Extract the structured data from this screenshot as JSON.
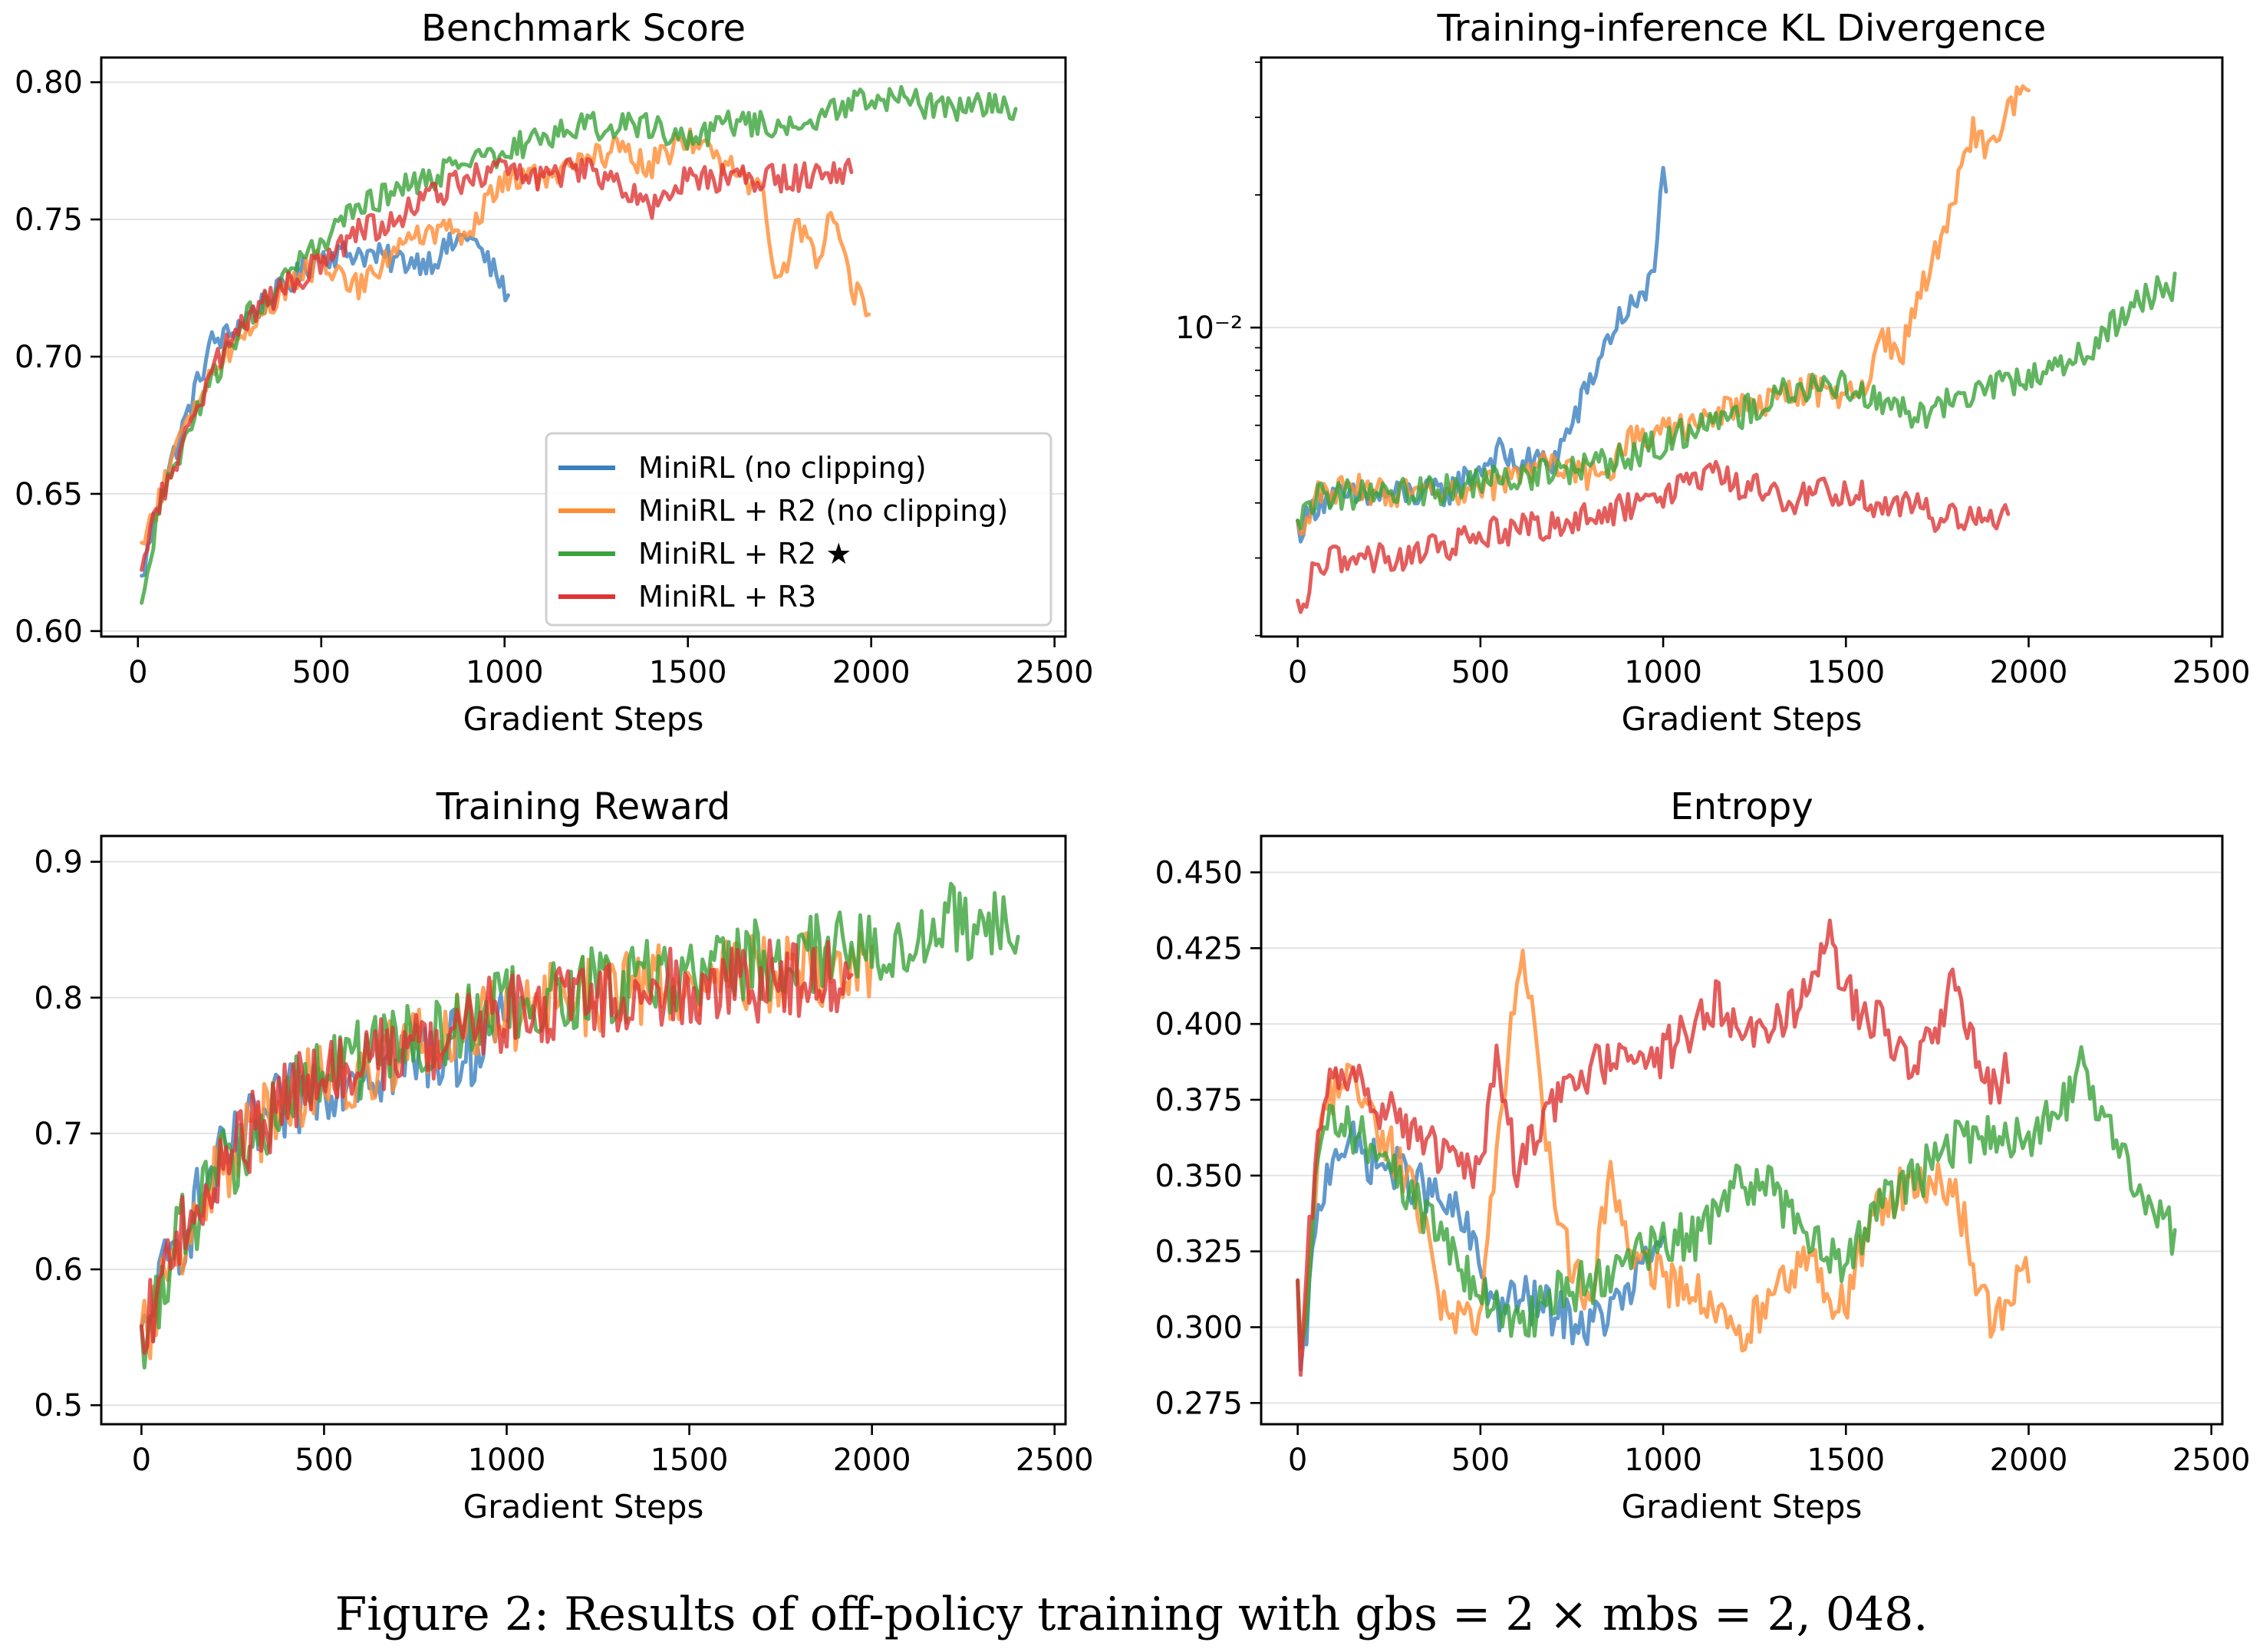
{
  "caption": "Figure 2: Results of off-policy training with gbs = 2 × mbs = 2, 048.",
  "legend": [
    {
      "label": "MiniRL (no clipping)",
      "color": "#3a7fbf"
    },
    {
      "label": "MiniRL + R2 (no clipping)",
      "color": "#ff8c33"
    },
    {
      "label": "MiniRL + R2 ★",
      "color": "#3aa33a"
    },
    {
      "label": "MiniRL + R3",
      "color": "#dd3535"
    }
  ],
  "chart_data": [
    {
      "id": "benchmark",
      "type": "line",
      "title": "Benchmark Score",
      "xlabel": "Gradient Steps",
      "ylabel": "",
      "xlim": [
        -100,
        2530
      ],
      "ylim": [
        0.598,
        0.809
      ],
      "xticks": [
        0,
        500,
        1000,
        1500,
        2000,
        2500
      ],
      "xtick_labels": [
        "0",
        "500",
        "1000",
        "1500",
        "2000",
        "2500"
      ],
      "yticks": [
        0.6,
        0.65,
        0.7,
        0.75,
        0.8
      ],
      "ytick_labels": [
        "0.60",
        "0.65",
        "0.70",
        "0.75",
        "0.80"
      ],
      "yscale": "linear",
      "grid": "y",
      "legend_position": "lower-right",
      "noise": 0.005,
      "series": [
        {
          "name": "MiniRL (no clipping)",
          "x": [
            10,
            50,
            100,
            150,
            200,
            250,
            300,
            400,
            500,
            600,
            700,
            800,
            900,
            950,
            1000,
            1010
          ],
          "y": [
            0.618,
            0.645,
            0.665,
            0.685,
            0.705,
            0.708,
            0.715,
            0.725,
            0.737,
            0.738,
            0.735,
            0.735,
            0.745,
            0.735,
            0.725,
            0.718
          ]
        },
        {
          "name": "MiniRL + R2 (no clipping)",
          "x": [
            10,
            50,
            100,
            200,
            300,
            400,
            500,
            600,
            700,
            800,
            900,
            1000,
            1100,
            1200,
            1300,
            1400,
            1500,
            1600,
            1700,
            1750,
            1800,
            1850,
            1900,
            1950,
            2000
          ],
          "y": [
            0.63,
            0.645,
            0.665,
            0.695,
            0.71,
            0.725,
            0.735,
            0.725,
            0.74,
            0.745,
            0.745,
            0.765,
            0.765,
            0.77,
            0.775,
            0.77,
            0.78,
            0.77,
            0.76,
            0.725,
            0.75,
            0.735,
            0.755,
            0.725,
            0.715
          ]
        },
        {
          "name": "MiniRL + R2 ★",
          "x": [
            10,
            50,
            100,
            200,
            300,
            400,
            500,
            600,
            700,
            800,
            900,
            1000,
            1100,
            1200,
            1300,
            1400,
            1500,
            1600,
            1700,
            1800,
            1900,
            2000,
            2100,
            2200,
            2300,
            2400
          ],
          "y": [
            0.608,
            0.64,
            0.66,
            0.69,
            0.715,
            0.73,
            0.74,
            0.755,
            0.76,
            0.765,
            0.77,
            0.775,
            0.78,
            0.785,
            0.783,
            0.785,
            0.778,
            0.785,
            0.785,
            0.785,
            0.79,
            0.795,
            0.793,
            0.79,
            0.792,
            0.79
          ]
        },
        {
          "name": "MiniRL + R3",
          "x": [
            10,
            50,
            100,
            200,
            300,
            400,
            500,
            600,
            700,
            800,
            900,
            1000,
            1100,
            1200,
            1300,
            1400,
            1500,
            1600,
            1700,
            1800,
            1900,
            1950
          ],
          "y": [
            0.62,
            0.645,
            0.66,
            0.695,
            0.715,
            0.725,
            0.735,
            0.745,
            0.75,
            0.758,
            0.765,
            0.768,
            0.765,
            0.768,
            0.765,
            0.755,
            0.765,
            0.765,
            0.765,
            0.765,
            0.768,
            0.768
          ]
        }
      ]
    },
    {
      "id": "kl",
      "type": "line",
      "title": "Training-inference KL Divergence",
      "xlabel": "Gradient Steps",
      "ylabel": "",
      "xlim": [
        -100,
        2530
      ],
      "ylim": [
        0.00199,
        0.041
      ],
      "xticks": [
        0,
        500,
        1000,
        1500,
        2000,
        2500
      ],
      "xtick_labels": [
        "0",
        "500",
        "1000",
        "1500",
        "2000",
        "2500"
      ],
      "yscale": "log",
      "major_yticks": [
        0.01
      ],
      "major_ytick_labels": [
        "10⁻²"
      ],
      "minor_yticks": [
        0.002,
        0.003,
        0.004,
        0.005,
        0.006,
        0.007,
        0.008,
        0.009,
        0.02,
        0.03,
        0.04
      ],
      "grid": "y",
      "noise": 0.035,
      "series": [
        {
          "name": "MiniRL (no clipping)",
          "x": [
            0,
            20,
            60,
            150,
            300,
            400,
            500,
            550,
            600,
            700,
            750,
            800,
            850,
            900,
            950,
            980,
            1000,
            1010
          ],
          "y": [
            0.0035,
            0.0036,
            0.0041,
            0.0041,
            0.0042,
            0.0042,
            0.0048,
            0.0052,
            0.0049,
            0.005,
            0.006,
            0.0075,
            0.0095,
            0.011,
            0.0115,
            0.015,
            0.022,
            0.0215
          ]
        },
        {
          "name": "MiniRL + R2 (no clipping)",
          "x": [
            0,
            20,
            60,
            150,
            300,
            400,
            500,
            600,
            700,
            800,
            850,
            900,
            1000,
            1100,
            1200,
            1300,
            1400,
            1500,
            1550,
            1600,
            1650,
            1700,
            1750,
            1800,
            1850,
            1900,
            1950,
            2000
          ],
          "y": [
            0.0035,
            0.0037,
            0.0042,
            0.0043,
            0.0042,
            0.0041,
            0.0043,
            0.0046,
            0.005,
            0.0046,
            0.0045,
            0.0055,
            0.0058,
            0.006,
            0.0066,
            0.0068,
            0.0073,
            0.0068,
            0.0075,
            0.0095,
            0.0085,
            0.012,
            0.015,
            0.02,
            0.028,
            0.025,
            0.032,
            0.037
          ]
        },
        {
          "name": "MiniRL + R2 ★",
          "x": [
            0,
            20,
            60,
            150,
            300,
            400,
            500,
            600,
            700,
            800,
            900,
            1000,
            1100,
            1200,
            1300,
            1400,
            1500,
            1600,
            1700,
            1800,
            1900,
            2000,
            2100,
            2200,
            2300,
            2400
          ],
          "y": [
            0.0035,
            0.0037,
            0.0042,
            0.0042,
            0.0042,
            0.0043,
            0.0044,
            0.0046,
            0.0047,
            0.0048,
            0.0051,
            0.0055,
            0.006,
            0.0063,
            0.007,
            0.0072,
            0.0075,
            0.0068,
            0.0063,
            0.007,
            0.0074,
            0.0078,
            0.0082,
            0.0095,
            0.0115,
            0.0125
          ]
        },
        {
          "name": "MiniRL + R3",
          "x": [
            0,
            15,
            40,
            100,
            200,
            300,
            400,
            500,
            600,
            700,
            800,
            900,
            1000,
            1100,
            1150,
            1200,
            1300,
            1350,
            1400,
            1500,
            1550,
            1600,
            1650,
            1700,
            1750,
            1800,
            1900,
            1950
          ],
          "y": [
            0.0023,
            0.0022,
            0.0027,
            0.003,
            0.003,
            0.003,
            0.0032,
            0.0034,
            0.0035,
            0.0036,
            0.0037,
            0.0039,
            0.0041,
            0.0045,
            0.0046,
            0.0044,
            0.0043,
            0.004,
            0.0042,
            0.0043,
            0.0042,
            0.0038,
            0.004,
            0.0039,
            0.0036,
            0.0037,
            0.0037,
            0.0037
          ]
        }
      ]
    },
    {
      "id": "reward",
      "type": "line",
      "title": "Training Reward",
      "xlabel": "Gradient Steps",
      "ylabel": "",
      "xlim": [
        -110,
        2530
      ],
      "ylim": [
        0.486,
        0.919
      ],
      "xticks": [
        0,
        500,
        1000,
        1500,
        2000,
        2500
      ],
      "xtick_labels": [
        "0",
        "500",
        "1000",
        "1500",
        "2000",
        "2500"
      ],
      "yticks": [
        0.5,
        0.6,
        0.7,
        0.8,
        0.9
      ],
      "ytick_labels": [
        "0.5",
        "0.6",
        "0.7",
        "0.8",
        "0.9"
      ],
      "yscale": "linear",
      "grid": "y",
      "noise": 0.03,
      "series": [
        {
          "name": "MiniRL (no clipping)",
          "x": [
            0,
            30,
            100,
            200,
            300,
            400,
            500,
            600,
            700,
            800,
            900,
            1000
          ],
          "y": [
            0.54,
            0.57,
            0.62,
            0.67,
            0.7,
            0.72,
            0.74,
            0.75,
            0.75,
            0.76,
            0.765,
            0.775
          ]
        },
        {
          "name": "MiniRL + R2 (no clipping)",
          "x": [
            0,
            30,
            100,
            200,
            300,
            400,
            500,
            600,
            800,
            1000,
            1200,
            1400,
            1600,
            1800,
            2000
          ],
          "y": [
            0.54,
            0.57,
            0.62,
            0.665,
            0.7,
            0.725,
            0.74,
            0.75,
            0.77,
            0.79,
            0.8,
            0.81,
            0.815,
            0.82,
            0.83
          ]
        },
        {
          "name": "MiniRL + R2 ★",
          "x": [
            0,
            30,
            100,
            200,
            300,
            400,
            500,
            600,
            800,
            1000,
            1200,
            1400,
            1600,
            1800,
            2000,
            2200,
            2400
          ],
          "y": [
            0.54,
            0.57,
            0.62,
            0.665,
            0.7,
            0.725,
            0.745,
            0.755,
            0.775,
            0.795,
            0.805,
            0.815,
            0.825,
            0.83,
            0.84,
            0.855,
            0.86
          ]
        },
        {
          "name": "MiniRL + R3",
          "x": [
            0,
            30,
            100,
            200,
            300,
            400,
            500,
            600,
            800,
            1000,
            1200,
            1400,
            1600,
            1800,
            1950
          ],
          "y": [
            0.54,
            0.57,
            0.62,
            0.665,
            0.7,
            0.725,
            0.74,
            0.75,
            0.77,
            0.79,
            0.8,
            0.805,
            0.81,
            0.815,
            0.82
          ]
        }
      ]
    },
    {
      "id": "entropy",
      "type": "line",
      "title": "Entropy",
      "xlabel": "Gradient Steps",
      "ylabel": "",
      "xlim": [
        -100,
        2530
      ],
      "ylim": [
        0.268,
        0.462
      ],
      "xticks": [
        0,
        500,
        1000,
        1500,
        2000,
        2500
      ],
      "xtick_labels": [
        "0",
        "500",
        "1000",
        "1500",
        "2000",
        "2500"
      ],
      "yticks": [
        0.275,
        0.3,
        0.325,
        0.35,
        0.375,
        0.4,
        0.425,
        0.45
      ],
      "ytick_labels": [
        "0.275",
        "0.300",
        "0.325",
        "0.350",
        "0.375",
        "0.400",
        "0.425",
        "0.450"
      ],
      "yscale": "linear",
      "grid": "y",
      "noise": 0.008,
      "series": [
        {
          "name": "MiniRL (no clipping)",
          "x": [
            0,
            10,
            30,
            60,
            100,
            150,
            200,
            300,
            400,
            450,
            500,
            550,
            600,
            700,
            800,
            900,
            1000
          ],
          "y": [
            0.31,
            0.278,
            0.31,
            0.34,
            0.36,
            0.36,
            0.355,
            0.35,
            0.34,
            0.335,
            0.32,
            0.305,
            0.31,
            0.305,
            0.3,
            0.31,
            0.33
          ]
        },
        {
          "name": "MiniRL + R2 (no clipping)",
          "x": [
            0,
            10,
            30,
            60,
            100,
            150,
            200,
            250,
            300,
            350,
            400,
            450,
            500,
            550,
            580,
            620,
            650,
            700,
            750,
            800,
            850,
            900,
            1000,
            1100,
            1200,
            1300,
            1400,
            1500,
            1550,
            1600,
            1700,
            1800,
            1850,
            1900,
            2000
          ],
          "y": [
            0.31,
            0.28,
            0.32,
            0.36,
            0.38,
            0.385,
            0.37,
            0.36,
            0.35,
            0.33,
            0.305,
            0.3,
            0.305,
            0.36,
            0.4,
            0.425,
            0.39,
            0.345,
            0.32,
            0.305,
            0.35,
            0.33,
            0.315,
            0.31,
            0.295,
            0.31,
            0.32,
            0.305,
            0.33,
            0.34,
            0.35,
            0.345,
            0.32,
            0.3,
            0.32
          ]
        },
        {
          "name": "MiniRL + R2 ★",
          "x": [
            0,
            10,
            30,
            60,
            100,
            150,
            200,
            300,
            400,
            500,
            600,
            700,
            800,
            900,
            1000,
            1100,
            1200,
            1300,
            1400,
            1500,
            1600,
            1700,
            1800,
            1900,
            2000,
            2100,
            2150,
            2200,
            2300,
            2400
          ],
          "y": [
            0.31,
            0.28,
            0.32,
            0.36,
            0.37,
            0.365,
            0.36,
            0.345,
            0.33,
            0.31,
            0.3,
            0.31,
            0.315,
            0.32,
            0.33,
            0.33,
            0.35,
            0.345,
            0.33,
            0.32,
            0.34,
            0.35,
            0.36,
            0.365,
            0.36,
            0.375,
            0.39,
            0.37,
            0.345,
            0.33
          ]
        },
        {
          "name": "MiniRL + R3",
          "x": [
            0,
            10,
            30,
            60,
            100,
            150,
            200,
            300,
            400,
            450,
            500,
            550,
            600,
            650,
            700,
            800,
            900,
            1000,
            1100,
            1150,
            1200,
            1300,
            1400,
            1450,
            1500,
            1600,
            1700,
            1750,
            1800,
            1850,
            1900,
            1950
          ],
          "y": [
            0.31,
            0.285,
            0.33,
            0.37,
            0.385,
            0.385,
            0.375,
            0.365,
            0.355,
            0.35,
            0.355,
            0.39,
            0.35,
            0.365,
            0.375,
            0.385,
            0.39,
            0.39,
            0.4,
            0.41,
            0.395,
            0.4,
            0.41,
            0.43,
            0.41,
            0.4,
            0.385,
            0.4,
            0.415,
            0.39,
            0.38,
            0.385
          ]
        }
      ]
    }
  ]
}
